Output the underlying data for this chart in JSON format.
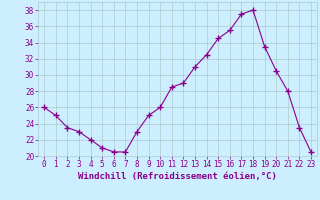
{
  "x": [
    0,
    1,
    2,
    3,
    4,
    5,
    6,
    7,
    8,
    9,
    10,
    11,
    12,
    13,
    14,
    15,
    16,
    17,
    18,
    19,
    20,
    21,
    22,
    23
  ],
  "y": [
    26,
    25,
    23.5,
    23,
    22,
    21,
    20.5,
    20.5,
    23,
    25,
    26,
    28.5,
    29,
    31,
    32.5,
    34.5,
    35.5,
    37.5,
    38,
    33.5,
    30.5,
    28,
    23.5,
    20.5
  ],
  "line_color": "#8B008B",
  "marker": "+",
  "marker_size": 4,
  "bg_color": "#cceeff",
  "grid_color": "#aacccc",
  "xlabel": "Windchill (Refroidissement éolien,°C)",
  "xlabel_color": "#8B008B",
  "ylim": [
    20,
    39
  ],
  "xlim": [
    -0.5,
    23.5
  ],
  "yticks": [
    20,
    22,
    24,
    26,
    28,
    30,
    32,
    34,
    36,
    38
  ],
  "xticks": [
    0,
    1,
    2,
    3,
    4,
    5,
    6,
    7,
    8,
    9,
    10,
    11,
    12,
    13,
    14,
    15,
    16,
    17,
    18,
    19,
    20,
    21,
    22,
    23
  ],
  "tick_color": "#8B008B",
  "tick_fontsize": 5.5,
  "xlabel_fontsize": 6.5,
  "line_width": 0.8
}
